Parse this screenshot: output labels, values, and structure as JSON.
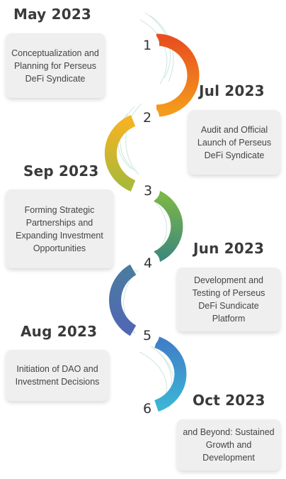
{
  "milestones": [
    {
      "step": "1",
      "date": "May 2023",
      "text": "Conceptualization and Planning for Perseus DeFi Syndicate"
    },
    {
      "step": "2",
      "date": "Jul 2023",
      "text": "Audit and Official Launch of Perseus DeFi Syndicate"
    },
    {
      "step": "3",
      "date": "Sep 2023",
      "text": "Forming Strategic Partnerships and Expanding Investment Opportunities"
    },
    {
      "step": "4",
      "date": "Jun 2023",
      "text": "Development and Testing of Perseus DeFi Sundicate Platform"
    },
    {
      "step": "5",
      "date": "Aug 2023",
      "text": "Initiation of DAO and Investment Decisions"
    },
    {
      "step": "6",
      "date": "Oct 2023",
      "text": "and Beyond: Sustained Growth and Development"
    }
  ],
  "colors": {
    "segment_1": "#e8501f",
    "segment_2": "#f5b323",
    "segment_3": "#6aae55",
    "segment_4": "#4e6fae",
    "segment_5": "#4aa4d4",
    "wave": "#cfe9dc",
    "card_bg": "#efefef"
  }
}
